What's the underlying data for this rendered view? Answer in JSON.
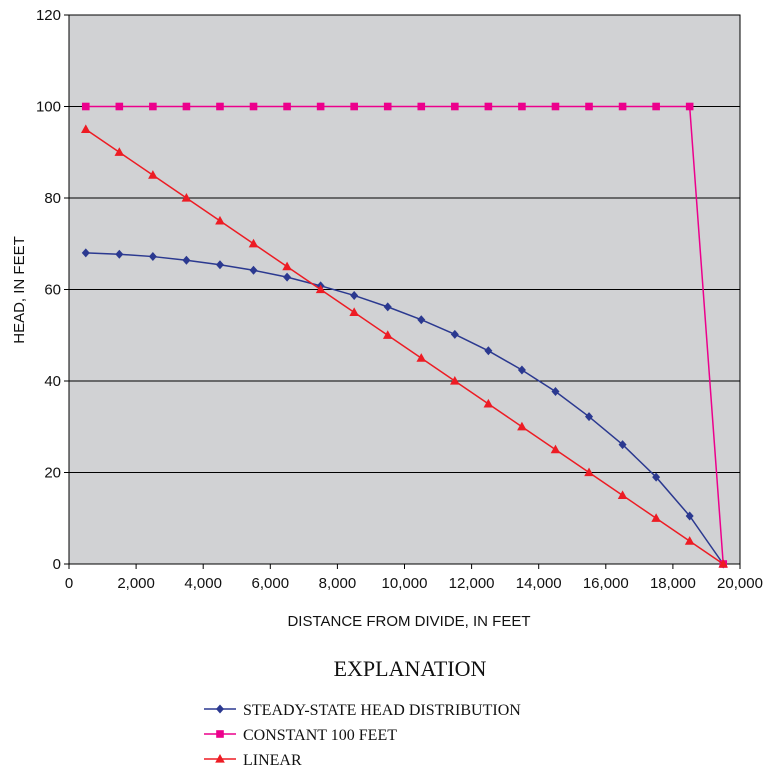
{
  "chart_data": {
    "type": "line",
    "title": "",
    "xlabel": "DISTANCE FROM DIVIDE, IN FEET",
    "ylabel": "HEAD, IN FEET",
    "xlim": [
      0,
      20000
    ],
    "ylim": [
      0,
      120
    ],
    "x_ticks": [
      "0",
      "2,000",
      "4,000",
      "6,000",
      "8,000",
      "10,000",
      "12,000",
      "14,000",
      "16,000",
      "18,000",
      "20,000"
    ],
    "y_ticks": [
      "0",
      "20",
      "40",
      "60",
      "80",
      "100",
      "120"
    ],
    "grid": "horizontal",
    "plot_background": "#d1d2d4",
    "legend_title": "EXPLANATION",
    "legend_position": "bottom",
    "series": [
      {
        "name": "STEADY-STATE HEAD DISTRIBUTION",
        "color": "#2b3990",
        "marker": "diamond",
        "x": [
          500,
          1500,
          2500,
          3500,
          4500,
          5500,
          6500,
          7500,
          8500,
          9500,
          10500,
          11500,
          12500,
          13500,
          14500,
          15500,
          16500,
          17500,
          18500,
          19500
        ],
        "values": [
          68,
          67.7,
          67.2,
          66.4,
          65.4,
          64.2,
          62.7,
          60.8,
          58.7,
          56.2,
          53.4,
          50.2,
          46.6,
          42.4,
          37.7,
          32.2,
          26.1,
          19,
          10.5,
          0
        ]
      },
      {
        "name": "CONSTANT 100 FEET",
        "color": "#ec008c",
        "marker": "square",
        "x": [
          500,
          1500,
          2500,
          3500,
          4500,
          5500,
          6500,
          7500,
          8500,
          9500,
          10500,
          11500,
          12500,
          13500,
          14500,
          15500,
          16500,
          17500,
          18500,
          19500
        ],
        "values": [
          100,
          100,
          100,
          100,
          100,
          100,
          100,
          100,
          100,
          100,
          100,
          100,
          100,
          100,
          100,
          100,
          100,
          100,
          100,
          0
        ]
      },
      {
        "name": "LINEAR",
        "color": "#ed1c24",
        "marker": "triangle",
        "x": [
          500,
          1500,
          2500,
          3500,
          4500,
          5500,
          6500,
          7500,
          8500,
          9500,
          10500,
          11500,
          12500,
          13500,
          14500,
          15500,
          16500,
          17500,
          18500,
          19500
        ],
        "values": [
          95,
          90,
          85,
          80,
          75,
          70,
          65,
          60,
          55,
          50,
          45,
          40,
          35,
          30,
          25,
          20,
          15,
          10,
          5,
          0
        ]
      }
    ]
  }
}
